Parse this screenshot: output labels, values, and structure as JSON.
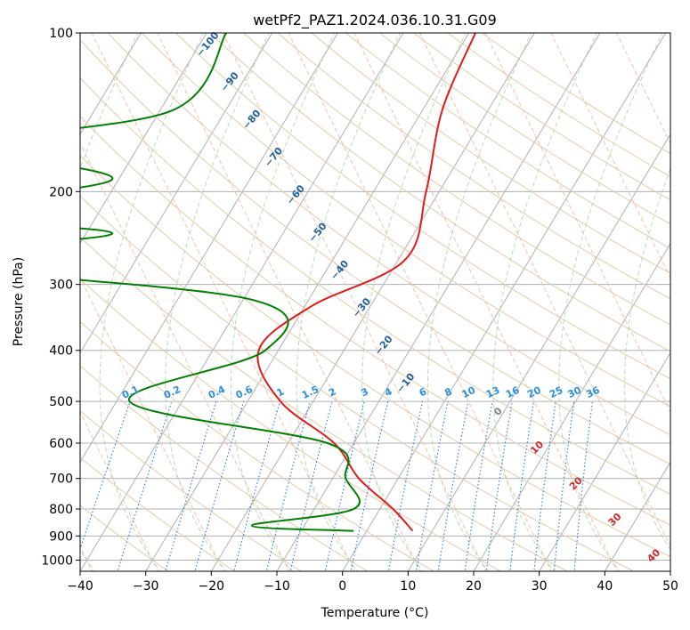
{
  "chart_data": {
    "type": "line",
    "title": "wetPf2_PAZ1.2024.036.10.31.G09",
    "xlabel": "Temperature (°C)",
    "ylabel": "Pressure (hPa)",
    "xlim": [
      -40,
      50
    ],
    "ylim": [
      1050,
      100
    ],
    "y_scale": "log",
    "grid": true,
    "x_ticks": [
      -40,
      -30,
      -20,
      -10,
      0,
      10,
      20,
      30,
      40,
      50
    ],
    "x_tick_labels": [
      "−40",
      "−30",
      "−20",
      "−10",
      "0",
      "10",
      "20",
      "30",
      "40",
      "50"
    ],
    "y_ticks": [
      100,
      200,
      300,
      400,
      500,
      600,
      700,
      800,
      900,
      1000
    ],
    "y_tick_labels": [
      "100",
      "200",
      "300",
      "400",
      "500",
      "600",
      "700",
      "800",
      "900",
      "1000"
    ],
    "series": [
      {
        "color": "#e31a1c",
        "points": [
          [
            -29,
            100
          ],
          [
            -27,
            140
          ],
          [
            -22,
            200
          ],
          [
            -19,
            270
          ],
          [
            -29,
            330
          ],
          [
            -33,
            400
          ],
          [
            -25,
            500
          ],
          [
            -13,
            600
          ],
          [
            -6,
            700
          ],
          [
            2,
            800
          ],
          [
            7,
            880
          ]
        ]
      },
      {
        "color": "#008000",
        "points": [
          [
            -67,
            100
          ],
          [
            -68,
            140
          ],
          [
            -95,
            163
          ],
          [
            -71,
            190
          ],
          [
            -101,
            220
          ],
          [
            -66,
            240
          ],
          [
            -96,
            270
          ],
          [
            -39,
            320
          ],
          [
            -32,
            400
          ],
          [
            -48,
            500
          ],
          [
            -14,
            600
          ],
          [
            -8,
            700
          ],
          [
            -4,
            800
          ],
          [
            -18,
            860
          ],
          [
            -2,
            880
          ]
        ]
      }
    ],
    "dry_adiabat_labels": [
      "−100",
      "−90",
      "−80",
      "−70",
      "−60",
      "−50",
      "−40",
      "−30",
      "−20",
      "−10"
    ],
    "mixing_ratio_labels": [
      "0.1",
      "0.2",
      "0.4",
      "0.6",
      "1",
      "1.5",
      "2",
      "3",
      "4",
      "6",
      "8",
      "10",
      "13",
      "16",
      "20",
      "25",
      "30",
      "36"
    ],
    "moist_adiabat_labels": [
      "0",
      "10",
      "20",
      "30",
      "40"
    ]
  }
}
